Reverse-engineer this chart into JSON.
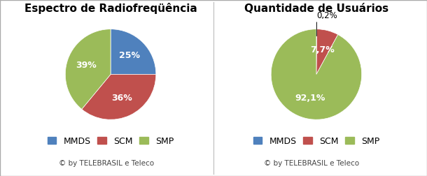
{
  "chart1": {
    "title": "Espectro de Radiofreqüência",
    "labels": [
      "MMDS",
      "SCM",
      "SMP"
    ],
    "values": [
      25,
      36,
      39
    ],
    "colors": [
      "#4F81BD",
      "#C0504D",
      "#9BBB59"
    ],
    "pct_labels": [
      "25%",
      "36%",
      "39%"
    ],
    "startangle": 90,
    "copyright": "© by TELEBRASIL e Teleco"
  },
  "chart2": {
    "title": "Quantidade de Usuários",
    "labels": [
      "MMDS",
      "SCM",
      "SMP"
    ],
    "values": [
      0.2,
      7.7,
      92.1
    ],
    "colors": [
      "#4F81BD",
      "#C0504D",
      "#9BBB59"
    ],
    "pct_labels": [
      "0,2%",
      "7,7%",
      "92,1%"
    ],
    "startangle": 90,
    "copyright": "© by TELEBRASIL e Teleco"
  },
  "legend_labels": [
    "MMDS",
    "SCM",
    "SMP"
  ],
  "legend_colors": [
    "#4F81BD",
    "#C0504D",
    "#9BBB59"
  ],
  "bg_color": "#FFFFFF",
  "title_fontsize": 11,
  "label_fontsize": 9,
  "legend_fontsize": 9,
  "copyright_fontsize": 7.5
}
